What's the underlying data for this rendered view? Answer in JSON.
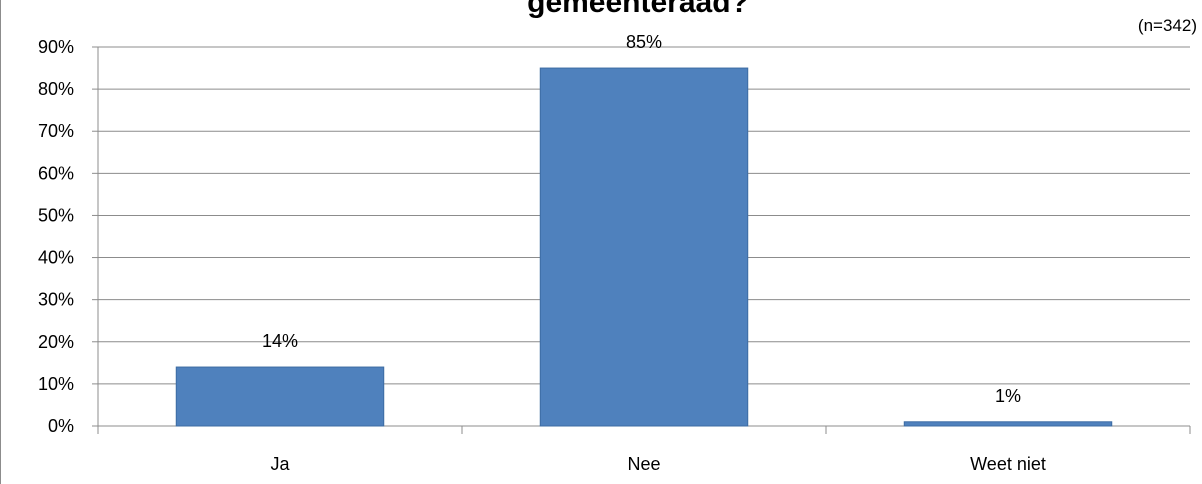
{
  "chart_data": {
    "type": "bar",
    "title": "gemeenteraad?",
    "note": "(n=342)",
    "categories": [
      "Ja",
      "Nee",
      "Weet niet"
    ],
    "values": [
      14,
      85,
      1
    ],
    "data_labels": [
      "14%",
      "85%",
      "1%"
    ],
    "ylim": [
      0,
      90
    ],
    "y_ticks": [
      0,
      10,
      20,
      30,
      40,
      50,
      60,
      70,
      80,
      90
    ],
    "y_tick_labels": [
      "0%",
      "10%",
      "20%",
      "30%",
      "40%",
      "50%",
      "60%",
      "70%",
      "80%",
      "90%"
    ],
    "xlabel": "",
    "ylabel": "",
    "grid": true,
    "legend": "none",
    "bar_color": "#4f81bd",
    "bar_border_color": "#3d6ca3",
    "grid_color": "#8c8c8c"
  }
}
